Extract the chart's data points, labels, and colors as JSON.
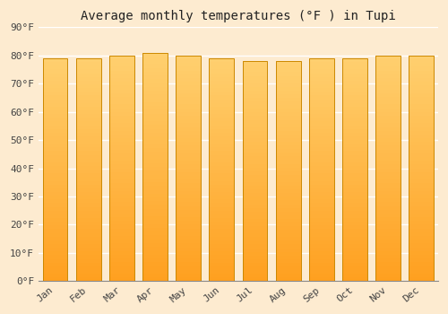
{
  "title": "Average monthly temperatures (°F ) in Tupi",
  "months": [
    "Jan",
    "Feb",
    "Mar",
    "Apr",
    "May",
    "Jun",
    "Jul",
    "Aug",
    "Sep",
    "Oct",
    "Nov",
    "Dec"
  ],
  "values": [
    79,
    79,
    80,
    81,
    80,
    79,
    78,
    78,
    79,
    79,
    80,
    80
  ],
  "ylim": [
    0,
    90
  ],
  "yticks": [
    0,
    10,
    20,
    30,
    40,
    50,
    60,
    70,
    80,
    90
  ],
  "bar_color_top": "#FFD070",
  "bar_color_bottom": "#FFA020",
  "bar_edge_color": "#CC8800",
  "background_color": "#FDEBD0",
  "plot_bg_color": "#FDEBD0",
  "grid_color": "#FFFFFF",
  "title_fontsize": 10,
  "tick_fontsize": 8,
  "title_font_family": "monospace"
}
